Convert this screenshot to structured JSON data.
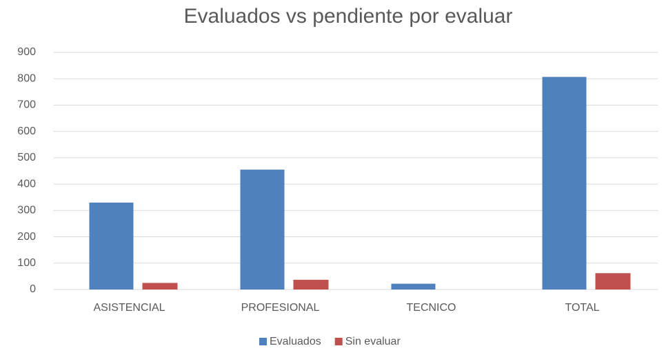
{
  "chart_data": {
    "type": "bar",
    "title": "Evaluados vs pendiente por evaluar",
    "categories": [
      "ASISTENCIAL",
      "PROFESIONAL",
      "TECNICO",
      "TOTAL"
    ],
    "series": [
      {
        "name": "Evaluados",
        "color": "#4f81bd",
        "values": [
          330,
          455,
          22,
          807
        ]
      },
      {
        "name": "Sin evaluar",
        "color": "#c0504d",
        "values": [
          25,
          37,
          0,
          62
        ]
      }
    ],
    "ylim": [
      0,
      900
    ],
    "yticks": [
      0,
      100,
      200,
      300,
      400,
      500,
      600,
      700,
      800,
      900
    ],
    "grid": true,
    "legend": "bottom"
  }
}
